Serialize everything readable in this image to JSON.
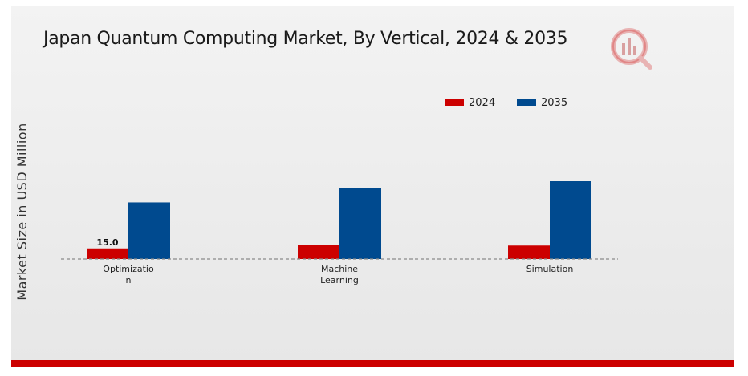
{
  "chart_data": {
    "type": "bar",
    "title": "Japan Quantum Computing Market, By Vertical, 2024 & 2035",
    "xlabel": "",
    "ylabel": "Market Size in USD Million",
    "categories": [
      "Optimizatio n",
      "Machine Learning",
      "Simulation"
    ],
    "category_lines": [
      [
        "Optimizatio",
        "n"
      ],
      [
        "Machine",
        "Learning"
      ],
      [
        "Simulation"
      ]
    ],
    "series": [
      {
        "name": "2024",
        "color": "#cc0000",
        "values": [
          15.0,
          20.0,
          19.0
        ]
      },
      {
        "name": "2035",
        "color": "#004a8f",
        "values": [
          80.0,
          100.0,
          110.0
        ]
      }
    ],
    "data_labels": [
      {
        "series": 0,
        "index": 0,
        "text": "15.0"
      }
    ],
    "ylim": [
      0,
      180
    ],
    "grid": false,
    "baseline": "dashed",
    "legend_position": "top-right"
  },
  "logo": {
    "icon": "market-research-logo-icon",
    "colors": [
      "#cc0000",
      "#d9d9d9"
    ]
  }
}
